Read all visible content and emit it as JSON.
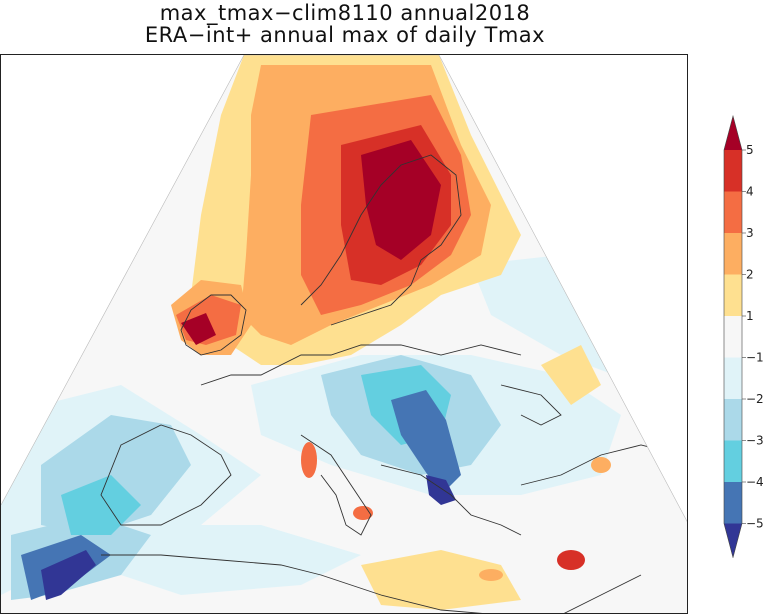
{
  "title_line1": "max_tmax−clim8110 annual2018",
  "title_line2": "ERA−int+ annual max of daily Tmax",
  "map": {
    "type": "filled-contour-map",
    "region": "Europe / Mediterranean",
    "projection": "conic",
    "coastlines": true
  },
  "colorbar": {
    "orientation": "vertical",
    "extend": "both",
    "levels": [
      "5",
      "4",
      "3",
      "2",
      "1",
      "−1",
      "−2",
      "−3",
      "−4",
      "−5"
    ],
    "colors": {
      "gt5": "#a50026",
      "4_5": "#d73027",
      "3_4": "#f46d43",
      "2_3": "#fdae61",
      "1_2": "#fee090",
      "m1_1": "#f7f7f7",
      "m2_m1": "#e0f3f8",
      "m3_m2": "#abd9e9",
      "m4_m3": "#63cfe0",
      "m5_m4": "#4575b4",
      "lt_m5": "#313695"
    }
  }
}
